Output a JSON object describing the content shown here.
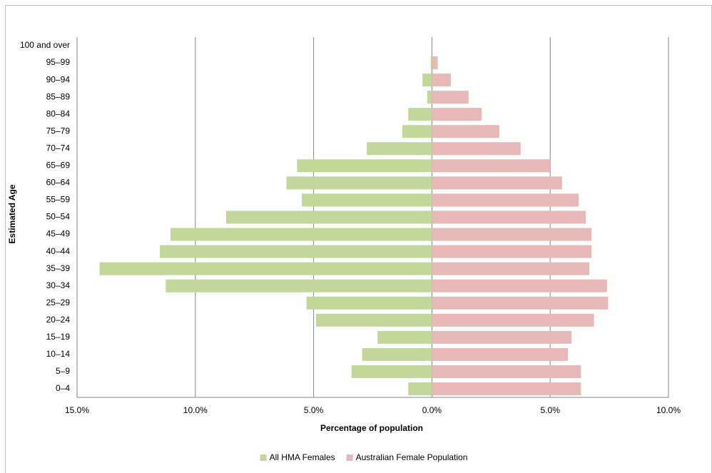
{
  "chart_data": {
    "type": "bar",
    "orientation": "horizontal",
    "stacked": true,
    "x_label": "Percentage of population",
    "y_label": "Estimated Age",
    "categories": [
      "0–4",
      "5–9",
      "10–14",
      "15–19",
      "20–24",
      "25–29",
      "30–34",
      "35–39",
      "40–44",
      "45–49",
      "50–54",
      "55–59",
      "60–64",
      "65–69",
      "70–74",
      "75–79",
      "80–84",
      "85–89",
      "90–94",
      "95–99",
      "100 and over"
    ],
    "series": [
      {
        "name": "All HMA Females",
        "color": "#c4d79b",
        "values": [
          -1.0,
          -3.4,
          -2.95,
          -2.3,
          -4.9,
          -5.3,
          -11.25,
          -14.05,
          -11.5,
          -11.05,
          -8.7,
          -5.5,
          -6.15,
          -5.7,
          -2.75,
          -1.25,
          -1.0,
          -0.2,
          -0.4,
          -0.05,
          0
        ]
      },
      {
        "name": "Australian Female Population",
        "color": "#e6b9b8",
        "values": [
          6.3,
          6.3,
          5.75,
          5.9,
          6.85,
          7.45,
          7.4,
          6.65,
          6.75,
          6.75,
          6.5,
          6.2,
          5.5,
          5.0,
          3.75,
          2.85,
          2.1,
          1.55,
          0.8,
          0.25,
          0
        ]
      }
    ],
    "xlim": [
      -15,
      10
    ],
    "xticks": [
      {
        "value": -15,
        "label": "15.0%"
      },
      {
        "value": -10,
        "label": "10.0%"
      },
      {
        "value": -5,
        "label": "5.0%"
      },
      {
        "value": 0,
        "label": "0.0%"
      },
      {
        "value": 5,
        "label": "5.0%"
      },
      {
        "value": 10,
        "label": "10.0%"
      }
    ],
    "grid": true,
    "legend": "bottom"
  }
}
